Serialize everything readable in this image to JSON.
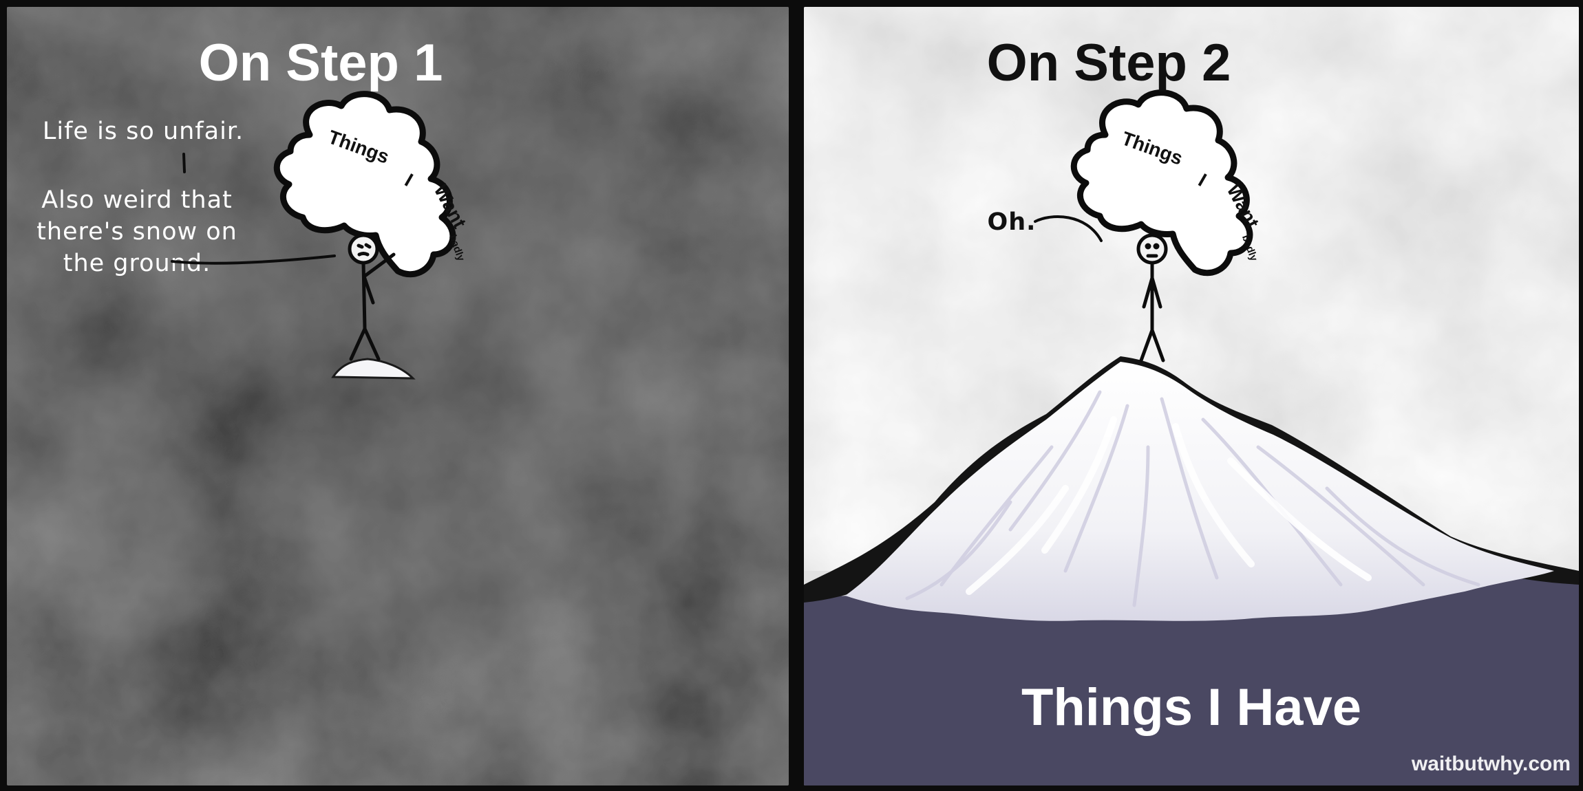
{
  "panels": {
    "left": {
      "title": "On Step 1",
      "caption_line1": "Life is so unfair.",
      "caption_line2": "Also weird that there's snow on the ground.",
      "bubble": {
        "word1": "Things",
        "word2": "I",
        "word3": "Want",
        "word4": "badly"
      }
    },
    "right": {
      "title": "On Step 2",
      "speech": "Oh.",
      "bubble": {
        "word1": "Things",
        "word2": "I",
        "word3": "Want",
        "word4": "badly"
      },
      "mountain_label": "Things I Have"
    }
  },
  "credit": "waitbutwhy.com",
  "colors": {
    "left_sky": "#3a3a3a",
    "right_sky": "#e4e4e4",
    "ground": "#4a4862",
    "snow": "#f7f7f9"
  }
}
